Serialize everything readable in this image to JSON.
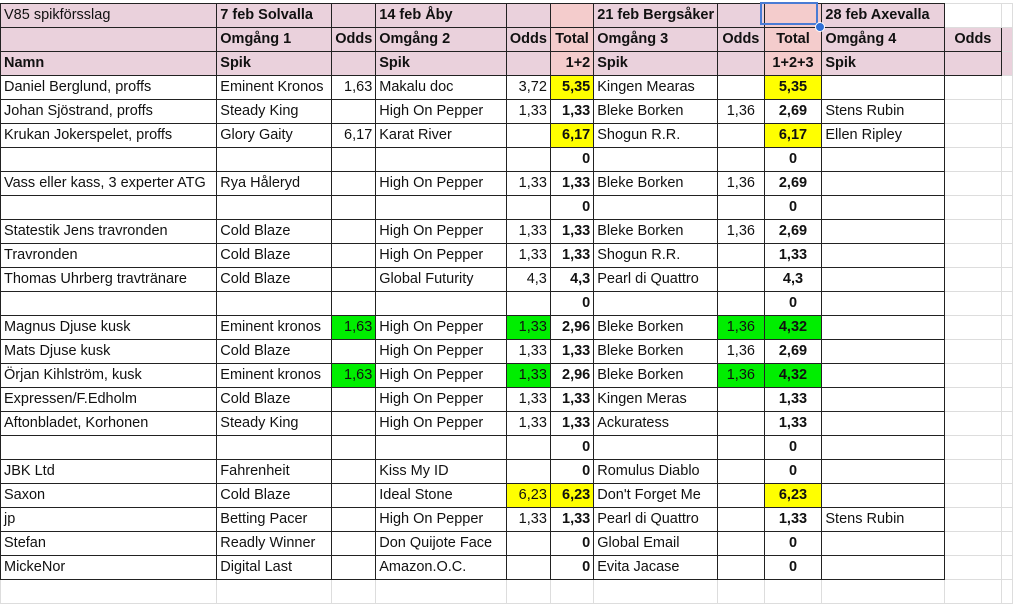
{
  "colors": {
    "header": "#ead1dc",
    "total_header": "#f4cccc",
    "yellow": "#ffff00",
    "green": "#00ee00",
    "selection": "#4a7bd4"
  },
  "header_rows": [
    [
      "V85 spikförsslag",
      "7 feb Solvalla",
      "",
      "14 feb Åby",
      "",
      "",
      "21 feb Bergsåker",
      "",
      "",
      "28 feb Axevalla",
      "",
      ""
    ],
    [
      "",
      "Omgång 1",
      "Odds",
      "Omgång 2",
      "Odds",
      "Total",
      "Omgång 3",
      "Odds",
      "Total",
      "Omgång 4",
      "Odds",
      ""
    ],
    [
      "Namn",
      "Spik",
      "",
      "Spik",
      "",
      "1+2",
      "Spik",
      "",
      "1+2+3",
      "Spik",
      "",
      ""
    ]
  ],
  "rows": [
    {
      "cells": [
        "Daniel Berglund, proffs",
        "Eminent Kronos",
        "1,63",
        "Makalu doc",
        "3,72",
        "5,35",
        "Kingen Mearas",
        "",
        "5,35",
        ""
      ],
      "hl": {
        "5": "yellow",
        "8": "yellow"
      }
    },
    {
      "cells": [
        "Johan Sjöstrand, proffs",
        "Steady King",
        "",
        "High On Pepper",
        "1,33",
        "1,33",
        "Bleke Borken",
        "1,36",
        "2,69",
        "Stens Rubin"
      ],
      "hl": {}
    },
    {
      "cells": [
        "Krukan Jokerspelet, proffs",
        "Glory Gaity",
        "6,17",
        "Karat River",
        "",
        "6,17",
        "Shogun R.R.",
        "",
        "6,17",
        "Ellen Ripley"
      ],
      "hl": {
        "5": "yellow",
        "8": "yellow"
      }
    },
    {
      "cells": [
        "",
        "",
        "",
        "",
        "",
        "0",
        "",
        "",
        "0",
        ""
      ],
      "hl": {}
    },
    {
      "cells": [
        "Vass eller kass, 3 experter ATG",
        "Rya Håleryd",
        "",
        "High On Pepper",
        "1,33",
        "1,33",
        "Bleke Borken",
        "1,36",
        "2,69",
        ""
      ],
      "hl": {}
    },
    {
      "cells": [
        "",
        "",
        "",
        "",
        "",
        "0",
        "",
        "",
        "0",
        ""
      ],
      "hl": {}
    },
    {
      "cells": [
        "Statestik Jens travronden",
        "Cold Blaze",
        "",
        "High On Pepper",
        "1,33",
        "1,33",
        "Bleke Borken",
        "1,36",
        "2,69",
        ""
      ],
      "hl": {}
    },
    {
      "cells": [
        "Travronden",
        "Cold Blaze",
        "",
        "High On Pepper",
        "1,33",
        "1,33",
        "Shogun R.R.",
        "",
        "1,33",
        ""
      ],
      "hl": {}
    },
    {
      "cells": [
        "Thomas Uhrberg travtränare",
        "Cold Blaze",
        "",
        "Global Futurity",
        "4,3",
        "4,3",
        "Pearl di Quattro",
        "",
        "4,3",
        ""
      ],
      "hl": {}
    },
    {
      "cells": [
        "",
        "",
        "",
        "",
        "",
        "0",
        "",
        "",
        "0",
        ""
      ],
      "hl": {}
    },
    {
      "cells": [
        "Magnus Djuse kusk",
        "Eminent kronos",
        "1,63",
        "High On Pepper",
        "1,33",
        "2,96",
        "Bleke Borken",
        "1,36",
        "4,32",
        ""
      ],
      "hl": {
        "2": "green",
        "4": "green",
        "7": "green",
        "8": "green"
      }
    },
    {
      "cells": [
        "Mats Djuse kusk",
        "Cold Blaze",
        "",
        "High On Pepper",
        "1,33",
        "1,33",
        "Bleke Borken",
        "1,36",
        "2,69",
        ""
      ],
      "hl": {}
    },
    {
      "cells": [
        "Örjan Kihlström, kusk",
        "Eminent kronos",
        "1,63",
        "High On Pepper",
        "1,33",
        "2,96",
        "Bleke Borken",
        "1,36",
        "4,32",
        ""
      ],
      "hl": {
        "2": "green",
        "4": "green",
        "7": "green",
        "8": "green"
      }
    },
    {
      "cells": [
        "Expressen/F.Edholm",
        "Cold Blaze",
        "",
        "High On Pepper",
        "1,33",
        "1,33",
        "Kingen Meras",
        "",
        "1,33",
        ""
      ],
      "hl": {}
    },
    {
      "cells": [
        "Aftonbladet, Korhonen",
        "Steady King",
        "",
        "High On Pepper",
        "1,33",
        "1,33",
        "Ackuratess",
        "",
        "1,33",
        ""
      ],
      "hl": {}
    },
    {
      "cells": [
        "",
        "",
        "",
        "",
        "",
        "0",
        "",
        "",
        "0",
        ""
      ],
      "hl": {}
    },
    {
      "cells": [
        "JBK Ltd",
        "Fahrenheit",
        "",
        "Kiss My ID",
        "",
        "0",
        "Romulus Diablo",
        "",
        "0",
        ""
      ],
      "hl": {}
    },
    {
      "cells": [
        "Saxon",
        "Cold Blaze",
        "",
        "Ideal Stone",
        "6,23",
        "6,23",
        "Don't Forget Me",
        "",
        "6,23",
        ""
      ],
      "hl": {
        "4": "yellow",
        "5": "yellow",
        "8": "yellow"
      }
    },
    {
      "cells": [
        "jp",
        "Betting Pacer",
        "",
        "High On Pepper",
        "1,33",
        "1,33",
        "Pearl di Quattro",
        "",
        "1,33",
        "Stens Rubin"
      ],
      "hl": {}
    },
    {
      "cells": [
        "Stefan",
        "Readly Winner",
        "",
        "Don Quijote Face",
        "",
        "0",
        "Global Email",
        "",
        "0",
        ""
      ],
      "hl": {}
    },
    {
      "cells": [
        "MickeNor",
        "Digital Last",
        "",
        "Amazon.O.C.",
        "",
        "0",
        "Evita Jacase",
        "",
        "0",
        ""
      ],
      "hl": {}
    }
  ]
}
